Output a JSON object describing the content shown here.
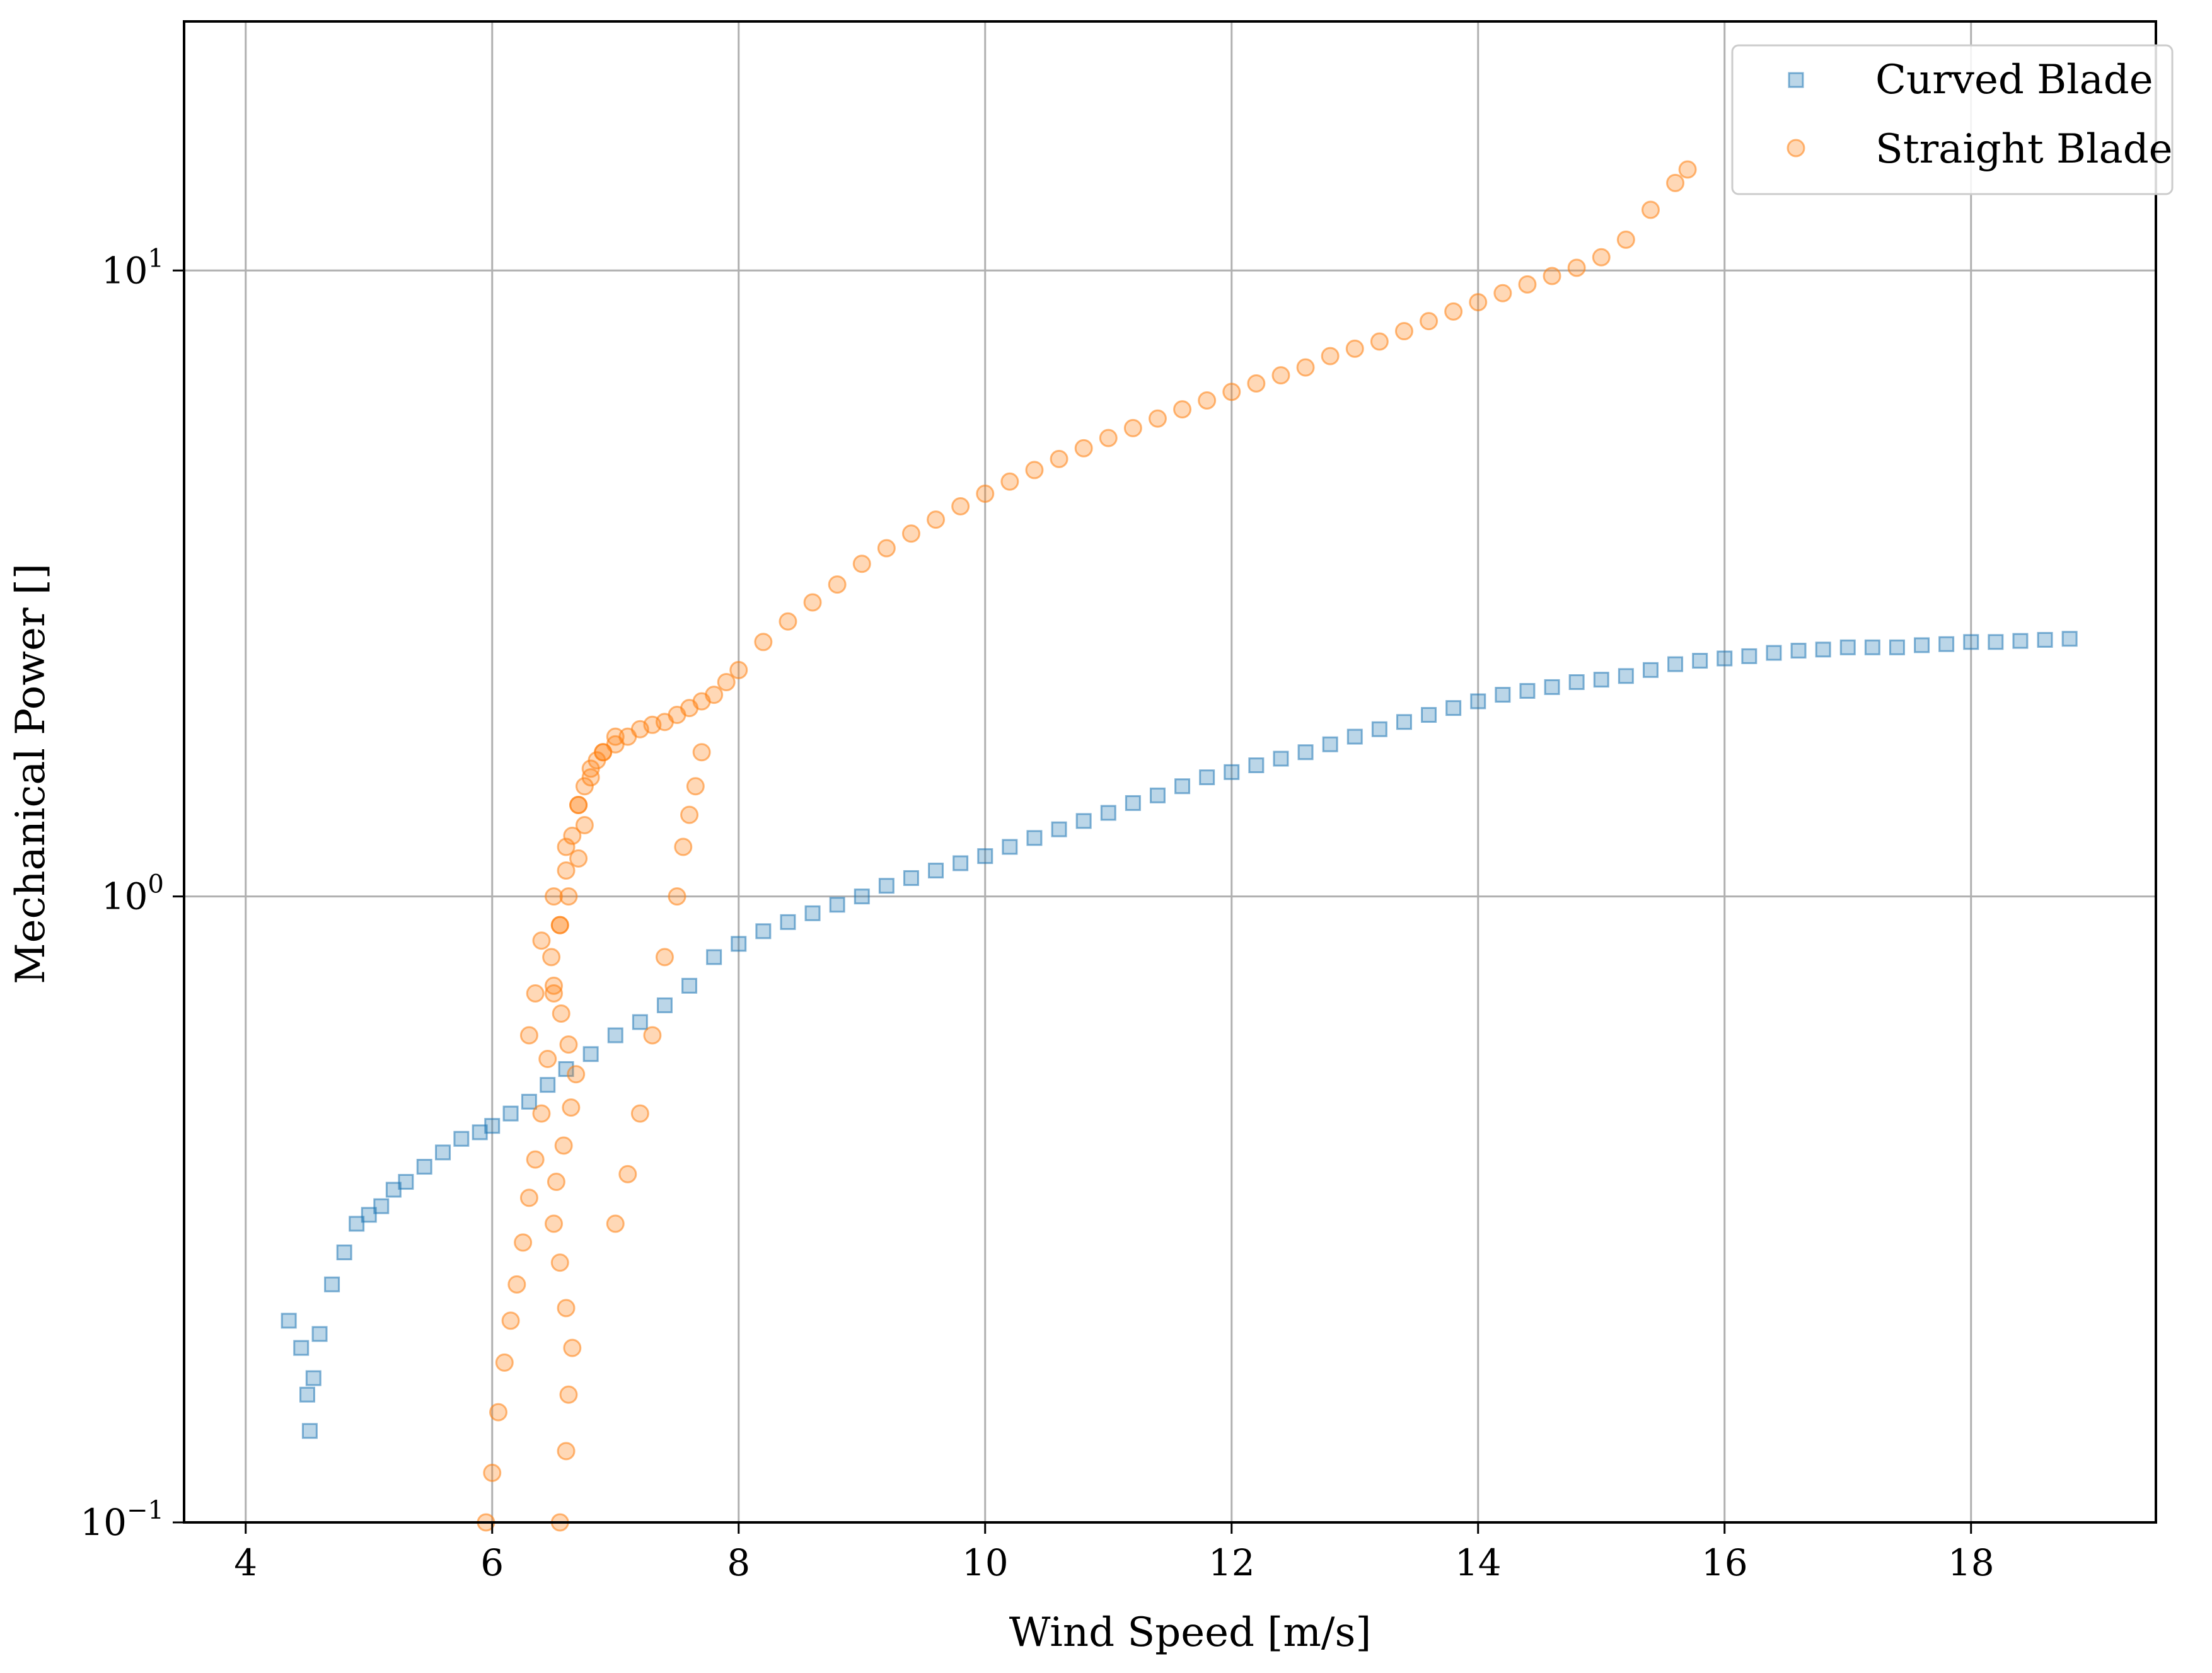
{
  "colors": {
    "curved": "#1f77b4",
    "straight": "#ff7f0e",
    "grid": "#b0b0b0",
    "axis": "#000000"
  },
  "chart_data": {
    "type": "scatter",
    "title": "",
    "xlabel": "Wind Speed [m/s]",
    "ylabel": "Mechanical Power []",
    "xlim": [
      3.5,
      19.5
    ],
    "ylim": [
      0.1,
      25
    ],
    "yscale": "log",
    "grid": true,
    "legend_position": "top-right",
    "x_ticks": [
      4,
      6,
      8,
      10,
      12,
      14,
      16,
      18
    ],
    "x_tick_labels": [
      "4",
      "6",
      "8",
      "10",
      "12",
      "14",
      "16",
      "18"
    ],
    "y_ticks": [
      0.1,
      1,
      10
    ],
    "y_tick_labels": [
      {
        "base": "10",
        "exp": "−1"
      },
      {
        "base": "10",
        "exp": "0"
      },
      {
        "base": "10",
        "exp": "1"
      }
    ],
    "series": [
      {
        "name": "Curved Blade",
        "marker": "square",
        "color_key": "curved",
        "x": [
          4.35,
          4.45,
          4.5,
          4.52,
          4.55,
          4.6,
          4.7,
          4.8,
          4.9,
          5.0,
          5.1,
          5.2,
          5.3,
          5.45,
          5.6,
          5.75,
          5.9,
          6.0,
          6.15,
          6.3,
          6.45,
          6.6,
          6.8,
          7.0,
          7.2,
          7.4,
          7.6,
          7.8,
          8.0,
          8.2,
          8.4,
          8.6,
          8.8,
          9.0,
          9.2,
          9.4,
          9.6,
          9.8,
          10.0,
          10.2,
          10.4,
          10.6,
          10.8,
          11.0,
          11.2,
          11.4,
          11.6,
          11.8,
          12.0,
          12.2,
          12.4,
          12.6,
          12.8,
          13.0,
          13.2,
          13.4,
          13.6,
          13.8,
          14.0,
          14.2,
          14.4,
          14.6,
          14.8,
          15.0,
          15.2,
          15.4,
          15.6,
          15.8,
          16.0,
          16.2,
          16.4,
          16.6,
          16.8,
          17.0,
          17.2,
          17.4,
          17.6,
          17.8,
          18.0,
          18.2,
          18.4,
          18.6,
          18.8
        ],
        "y": [
          0.21,
          0.19,
          0.16,
          0.14,
          0.17,
          0.2,
          0.24,
          0.27,
          0.3,
          0.31,
          0.32,
          0.34,
          0.35,
          0.37,
          0.39,
          0.41,
          0.42,
          0.43,
          0.45,
          0.47,
          0.5,
          0.53,
          0.56,
          0.6,
          0.63,
          0.67,
          0.72,
          0.8,
          0.84,
          0.88,
          0.91,
          0.94,
          0.97,
          1.0,
          1.04,
          1.07,
          1.1,
          1.13,
          1.16,
          1.2,
          1.24,
          1.28,
          1.32,
          1.36,
          1.41,
          1.45,
          1.5,
          1.55,
          1.58,
          1.62,
          1.66,
          1.7,
          1.75,
          1.8,
          1.85,
          1.9,
          1.95,
          2.0,
          2.05,
          2.1,
          2.13,
          2.16,
          2.2,
          2.22,
          2.25,
          2.3,
          2.35,
          2.38,
          2.4,
          2.42,
          2.45,
          2.47,
          2.48,
          2.5,
          2.5,
          2.5,
          2.52,
          2.53,
          2.55,
          2.55,
          2.56,
          2.57,
          2.58
        ]
      },
      {
        "name": "Straight Blade",
        "marker": "circle",
        "color_key": "straight",
        "x": [
          5.95,
          6.0,
          6.05,
          6.1,
          6.15,
          6.2,
          6.25,
          6.3,
          6.35,
          6.4,
          6.45,
          6.5,
          6.55,
          6.6,
          6.65,
          6.7,
          6.75,
          6.8,
          6.85,
          6.9,
          7.0,
          7.1,
          7.2,
          7.3,
          7.4,
          7.5,
          7.6,
          7.7,
          7.8,
          7.9,
          8.0,
          8.2,
          8.4,
          8.6,
          8.8,
          9.0,
          9.2,
          9.4,
          9.6,
          9.8,
          10.0,
          10.2,
          10.4,
          10.6,
          10.8,
          11.0,
          11.2,
          11.4,
          11.6,
          11.8,
          12.0,
          12.2,
          12.4,
          12.6,
          12.8,
          13.0,
          13.2,
          13.4,
          13.6,
          13.8,
          14.0,
          14.2,
          14.4,
          14.6,
          14.8,
          15.0,
          15.2,
          15.4,
          15.6,
          15.7,
          6.55,
          6.6,
          6.62,
          6.65,
          6.6,
          6.55,
          6.5,
          6.52,
          6.58,
          6.64,
          6.68,
          6.62,
          6.56,
          6.5,
          6.48,
          6.55,
          6.62,
          6.7,
          6.75,
          7.0,
          7.1,
          7.2,
          7.3,
          7.4,
          7.5,
          7.55,
          7.6,
          7.65,
          7.7,
          6.3,
          6.35,
          6.4,
          6.5,
          6.6,
          6.7,
          6.8,
          6.9,
          7.0
        ],
        "y": [
          0.1,
          0.12,
          0.15,
          0.18,
          0.21,
          0.24,
          0.28,
          0.33,
          0.38,
          0.45,
          0.55,
          0.7,
          0.9,
          1.1,
          1.25,
          1.4,
          1.5,
          1.6,
          1.65,
          1.7,
          1.75,
          1.8,
          1.85,
          1.88,
          1.9,
          1.95,
          2.0,
          2.05,
          2.1,
          2.2,
          2.3,
          2.55,
          2.75,
          2.95,
          3.15,
          3.4,
          3.6,
          3.8,
          4.0,
          4.2,
          4.4,
          4.6,
          4.8,
          5.0,
          5.2,
          5.4,
          5.6,
          5.8,
          6.0,
          6.2,
          6.4,
          6.6,
          6.8,
          7.0,
          7.3,
          7.5,
          7.7,
          8.0,
          8.3,
          8.6,
          8.9,
          9.2,
          9.5,
          9.8,
          10.1,
          10.5,
          11.2,
          12.5,
          13.8,
          14.5,
          0.1,
          0.13,
          0.16,
          0.19,
          0.22,
          0.26,
          0.3,
          0.35,
          0.4,
          0.46,
          0.52,
          0.58,
          0.65,
          0.72,
          0.8,
          0.9,
          1.0,
          1.15,
          1.3,
          0.3,
          0.36,
          0.45,
          0.6,
          0.8,
          1.0,
          1.2,
          1.35,
          1.5,
          1.7,
          0.6,
          0.7,
          0.85,
          1.0,
          1.2,
          1.4,
          1.55,
          1.7,
          1.8
        ]
      }
    ]
  }
}
